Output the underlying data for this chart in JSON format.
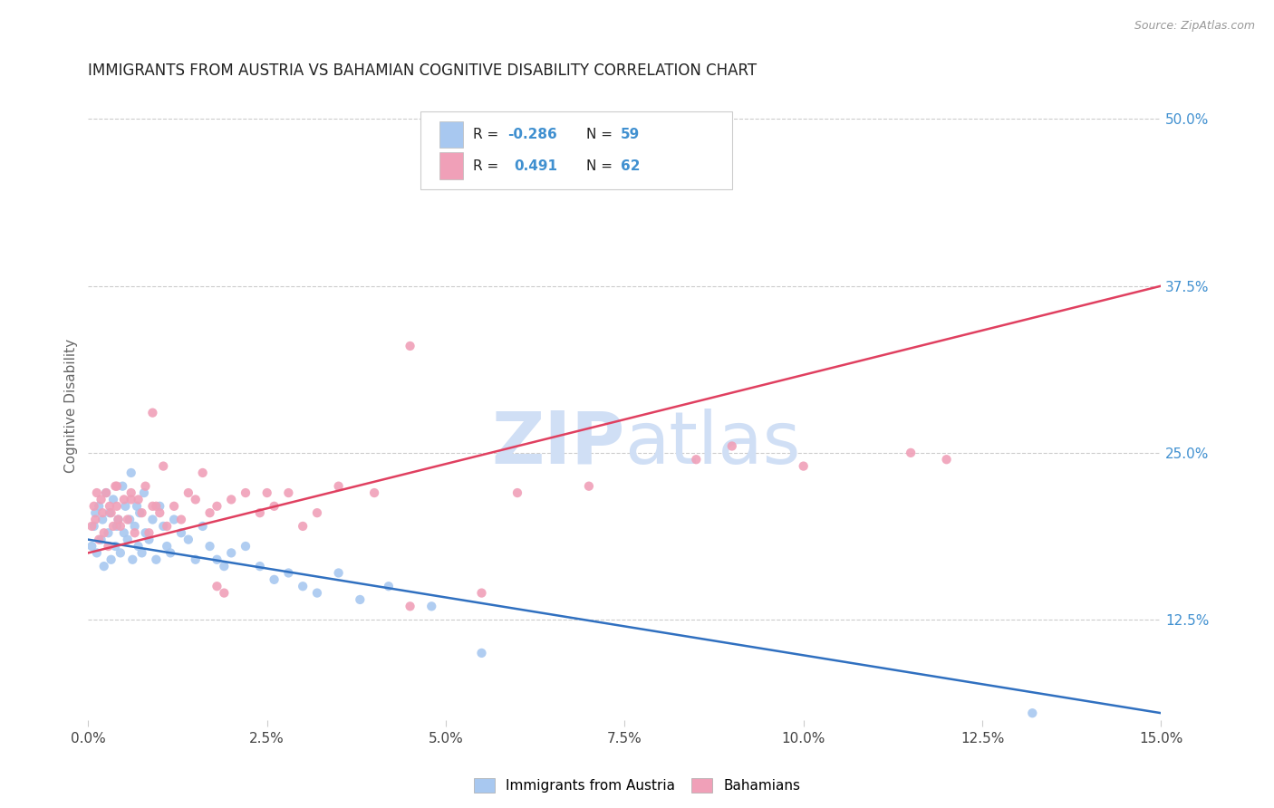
{
  "title": "IMMIGRANTS FROM AUSTRIA VS BAHAMIAN COGNITIVE DISABILITY CORRELATION CHART",
  "source_text": "Source: ZipAtlas.com",
  "xlabel_vals": [
    0.0,
    2.5,
    5.0,
    7.5,
    10.0,
    12.5,
    15.0
  ],
  "ylabel_vals": [
    12.5,
    25.0,
    37.5,
    50.0
  ],
  "xlim": [
    0.0,
    15.0
  ],
  "ylim": [
    5.0,
    52.0
  ],
  "ylabel": "Cognitive Disability",
  "legend_label1": "Immigrants from Austria",
  "legend_label2": "Bahamians",
  "R1": "-0.286",
  "N1": "59",
  "R2": "0.491",
  "N2": "62",
  "color_blue": "#a8c8f0",
  "color_pink": "#f0a0b8",
  "color_blue_line": "#3070c0",
  "color_pink_line": "#e04060",
  "color_blue_text": "#4090d0",
  "watermark_color": "#d0dff5",
  "background_color": "#ffffff",
  "grid_color": "#cccccc",
  "blue_x": [
    0.05,
    0.08,
    0.1,
    0.12,
    0.15,
    0.18,
    0.2,
    0.22,
    0.25,
    0.28,
    0.3,
    0.32,
    0.35,
    0.38,
    0.4,
    0.42,
    0.45,
    0.48,
    0.5,
    0.52,
    0.55,
    0.58,
    0.6,
    0.62,
    0.65,
    0.68,
    0.7,
    0.72,
    0.75,
    0.78,
    0.8,
    0.85,
    0.9,
    0.95,
    1.0,
    1.05,
    1.1,
    1.15,
    1.2,
    1.3,
    1.4,
    1.5,
    1.6,
    1.7,
    1.8,
    1.9,
    2.0,
    2.2,
    2.4,
    2.6,
    2.8,
    3.0,
    3.2,
    3.5,
    3.8,
    4.2,
    4.8,
    5.5,
    13.2
  ],
  "blue_y": [
    18.0,
    19.5,
    20.5,
    17.5,
    21.0,
    18.5,
    20.0,
    16.5,
    22.0,
    19.0,
    20.5,
    17.0,
    21.5,
    18.0,
    19.5,
    20.0,
    17.5,
    22.5,
    19.0,
    21.0,
    18.5,
    20.0,
    23.5,
    17.0,
    19.5,
    21.0,
    18.0,
    20.5,
    17.5,
    22.0,
    19.0,
    18.5,
    20.0,
    17.0,
    21.0,
    19.5,
    18.0,
    17.5,
    20.0,
    19.0,
    18.5,
    17.0,
    19.5,
    18.0,
    17.0,
    16.5,
    17.5,
    18.0,
    16.5,
    15.5,
    16.0,
    15.0,
    14.5,
    16.0,
    14.0,
    15.0,
    13.5,
    10.0,
    5.5
  ],
  "pink_x": [
    0.05,
    0.08,
    0.1,
    0.12,
    0.15,
    0.18,
    0.2,
    0.22,
    0.25,
    0.28,
    0.3,
    0.32,
    0.35,
    0.38,
    0.4,
    0.42,
    0.45,
    0.5,
    0.55,
    0.6,
    0.65,
    0.7,
    0.75,
    0.8,
    0.85,
    0.9,
    0.95,
    1.0,
    1.1,
    1.2,
    1.3,
    1.4,
    1.5,
    1.6,
    1.7,
    1.8,
    1.9,
    2.0,
    2.2,
    2.4,
    2.6,
    2.8,
    3.0,
    3.5,
    4.0,
    4.5,
    5.5,
    6.0,
    7.0,
    8.5,
    9.0,
    10.0,
    11.5,
    12.0,
    3.2,
    2.5,
    1.05,
    4.5,
    1.8,
    0.9,
    0.6,
    0.4
  ],
  "pink_y": [
    19.5,
    21.0,
    20.0,
    22.0,
    18.5,
    21.5,
    20.5,
    19.0,
    22.0,
    18.0,
    21.0,
    20.5,
    19.5,
    22.5,
    21.0,
    20.0,
    19.5,
    21.5,
    20.0,
    22.0,
    19.0,
    21.5,
    20.5,
    22.5,
    19.0,
    28.0,
    21.0,
    20.5,
    19.5,
    21.0,
    20.0,
    22.0,
    21.5,
    23.5,
    20.5,
    21.0,
    14.5,
    21.5,
    22.0,
    20.5,
    21.0,
    22.0,
    19.5,
    22.5,
    22.0,
    13.5,
    14.5,
    22.0,
    22.5,
    24.5,
    25.5,
    24.0,
    25.0,
    24.5,
    20.5,
    22.0,
    24.0,
    33.0,
    15.0,
    21.0,
    21.5,
    22.5
  ]
}
